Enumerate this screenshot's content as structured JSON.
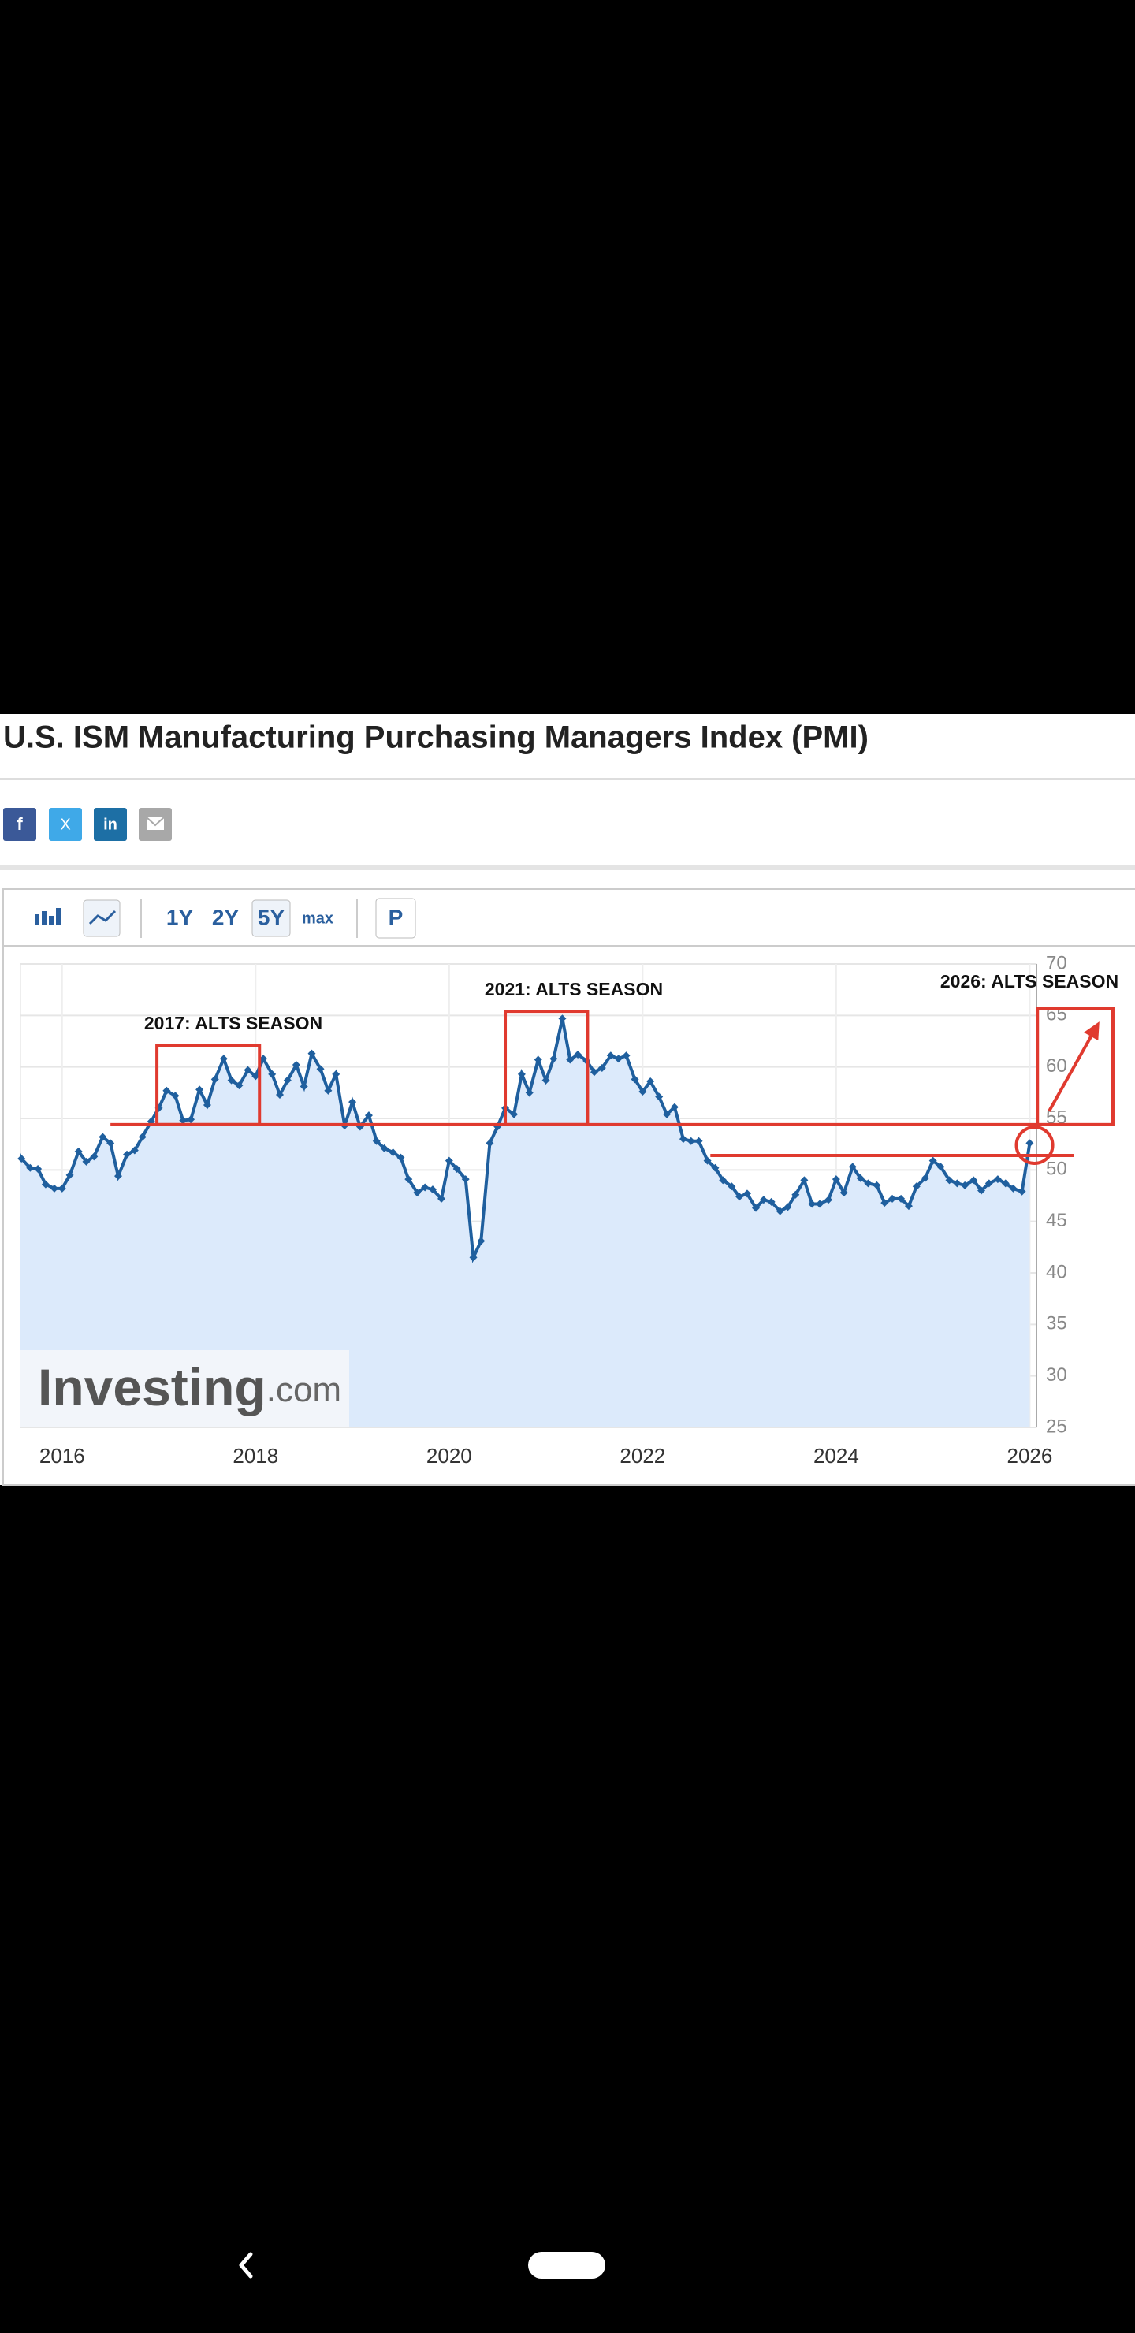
{
  "page_title": "U.S. ISM Manufacturing Purchasing Managers Index (PMI)",
  "social": [
    "f",
    "X",
    "in"
  ],
  "toolbar": {
    "ranges": [
      "1Y",
      "2Y",
      "5Y",
      "max"
    ],
    "extra": "P"
  },
  "watermark": {
    "brand": "Investing",
    "suffix": ".com"
  },
  "chart_data": {
    "type": "line",
    "color": "#1f5f9e",
    "area_color": "#dceafb",
    "xlim": [
      2015.57,
      2026.07
    ],
    "xticks": [
      2016,
      2018,
      2020,
      2022,
      2024,
      2026
    ],
    "ylim": [
      25,
      70
    ],
    "yticks": [
      25,
      30,
      35,
      40,
      45,
      50,
      55,
      60,
      65,
      70
    ],
    "grid": true,
    "x": [
      2015.5,
      2015.58,
      2015.67,
      2015.75,
      2015.83,
      2015.92,
      2016,
      2016.08,
      2016.17,
      2016.25,
      2016.33,
      2016.42,
      2016.5,
      2016.58,
      2016.67,
      2016.75,
      2016.83,
      2016.92,
      2017,
      2017.08,
      2017.17,
      2017.25,
      2017.33,
      2017.42,
      2017.5,
      2017.58,
      2017.67,
      2017.75,
      2017.83,
      2017.92,
      2018,
      2018.08,
      2018.17,
      2018.25,
      2018.33,
      2018.42,
      2018.5,
      2018.58,
      2018.67,
      2018.75,
      2018.83,
      2018.92,
      2019,
      2019.08,
      2019.17,
      2019.25,
      2019.33,
      2019.42,
      2019.5,
      2019.58,
      2019.67,
      2019.75,
      2019.83,
      2019.92,
      2020,
      2020.08,
      2020.17,
      2020.25,
      2020.33,
      2020.42,
      2020.5,
      2020.58,
      2020.67,
      2020.75,
      2020.83,
      2020.92,
      2021,
      2021.08,
      2021.17,
      2021.25,
      2021.33,
      2021.42,
      2021.5,
      2021.58,
      2021.67,
      2021.75,
      2021.83,
      2021.92,
      2022,
      2022.08,
      2022.17,
      2022.25,
      2022.33,
      2022.42,
      2022.5,
      2022.58,
      2022.67,
      2022.75,
      2022.83,
      2022.92,
      2023,
      2023.08,
      2023.17,
      2023.25,
      2023.33,
      2023.42,
      2023.5,
      2023.58,
      2023.67,
      2023.75,
      2023.83,
      2023.92,
      2024,
      2024.08,
      2024.17,
      2024.25,
      2024.33,
      2024.42,
      2024.5,
      2024.58,
      2024.67,
      2024.75,
      2024.83,
      2024.92,
      2025,
      2025.08,
      2025.17,
      2025.25,
      2025.33,
      2025.42,
      2025.5,
      2025.58,
      2025.67,
      2025.75,
      2025.83,
      2025.92,
      2026
    ],
    "values": [
      52.7,
      51.1,
      50.2,
      50.1,
      48.6,
      48.2,
      48.2,
      49.5,
      51.8,
      50.8,
      51.3,
      53.2,
      52.6,
      49.4,
      51.5,
      51.9,
      53.2,
      54.7,
      56.0,
      57.7,
      57.2,
      54.8,
      54.9,
      57.8,
      56.3,
      58.8,
      60.8,
      58.7,
      58.2,
      59.7,
      59.1,
      60.8,
      59.3,
      57.3,
      58.7,
      60.2,
      58.1,
      61.3,
      59.8,
      57.7,
      59.3,
      54.3,
      56.6,
      54.2,
      55.3,
      52.8,
      52.1,
      51.7,
      51.2,
      49.1,
      47.8,
      48.3,
      48.1,
      47.2,
      50.9,
      50.1,
      49.1,
      41.5,
      43.1,
      52.6,
      54.2,
      56.0,
      55.4,
      59.3,
      57.5,
      60.7,
      58.7,
      60.8,
      64.7,
      60.7,
      61.2,
      60.6,
      59.5,
      59.9,
      61.1,
      60.8,
      61.1,
      58.8,
      57.6,
      58.6,
      57.1,
      55.4,
      56.1,
      53.0,
      52.8,
      52.8,
      50.9,
      50.2,
      49.0,
      48.4,
      47.4,
      47.7,
      46.3,
      47.1,
      46.9,
      46.0,
      46.4,
      47.6,
      49.0,
      46.7,
      46.7,
      47.1,
      49.1,
      47.8,
      50.3,
      49.2,
      48.7,
      48.5,
      46.8,
      47.2,
      47.2,
      46.5,
      48.4,
      49.2,
      50.9,
      50.3,
      49.0,
      48.7,
      48.5,
      49.0,
      48.0,
      48.7,
      49.1,
      48.7,
      48.2,
      47.9,
      52.6
    ],
    "annotations": {
      "color": "#e03a2f",
      "labels": [
        "2017: ALTS SEASON",
        "2021: ALTS SEASON",
        "2026: ALTS SEASON"
      ],
      "boxes": [
        {
          "x": [
            2016.98,
            2018.04
          ],
          "y": [
            54.4,
            62.1
          ]
        },
        {
          "x": [
            2020.58,
            2021.43
          ],
          "y": [
            54.4,
            65.4
          ]
        },
        {
          "x": [
            2026.08,
            2026.86
          ],
          "y": [
            54.4,
            65.7
          ]
        }
      ],
      "lines": [
        {
          "x": [
            2016.5,
            2026.08
          ],
          "y": 54.4
        },
        {
          "x": [
            2022.7,
            2026.46
          ],
          "y": 51.4
        }
      ],
      "circle": {
        "x": 2026.05,
        "y": 52.4
      },
      "arrow": {
        "x": [
          2026.2,
          2026.72
        ],
        "y": [
          55.7,
          64.4
        ]
      }
    }
  }
}
